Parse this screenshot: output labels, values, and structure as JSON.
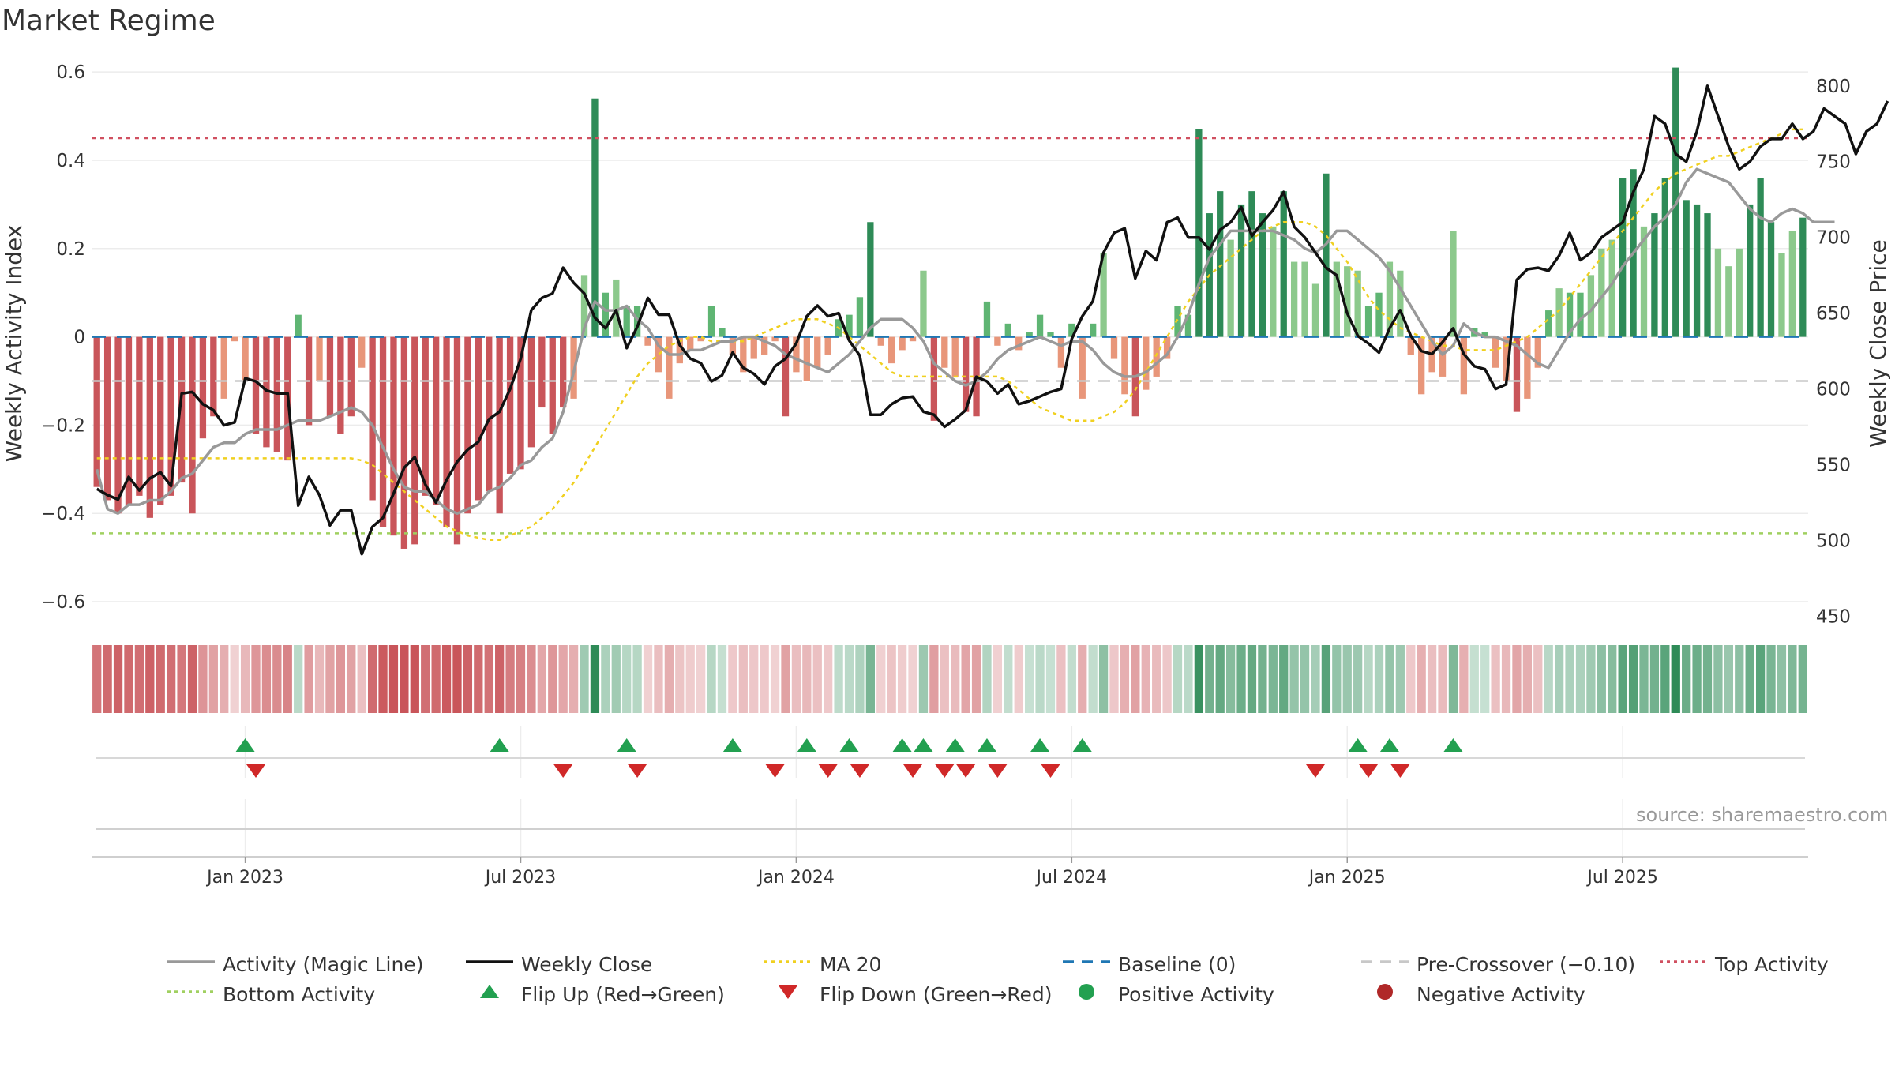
{
  "title": "Market Regime",
  "source": "source: sharemaestro.com",
  "colors": {
    "green_strong": "#2e8b57",
    "green_mid": "#5fb573",
    "green_light": "#8cc98c",
    "red_strong": "#c9555a",
    "red_light": "#e8967a",
    "magic_line": "#999999",
    "close": "#111111",
    "ma20": "#f0d020",
    "baseline": "#1f77b4",
    "pre_crossover": "#c8c8c8",
    "top_activity": "#d05060",
    "bottom_activity": "#a0d060",
    "flip_up": "#22a050",
    "flip_down": "#d02828"
  },
  "legend": [
    {
      "label": "Activity (Magic Line)",
      "symbol": "line",
      "color": "#999999",
      "dash": "solid"
    },
    {
      "label": "Weekly Close",
      "symbol": "line",
      "color": "#111111",
      "dash": "solid"
    },
    {
      "label": "MA 20",
      "symbol": "line",
      "color": "#f0d020",
      "dash": "dot"
    },
    {
      "label": "Baseline (0)",
      "symbol": "line",
      "color": "#1f77b4",
      "dash": "dash"
    },
    {
      "label": "Pre-Crossover (−0.10)",
      "symbol": "line",
      "color": "#c8c8c8",
      "dash": "dash"
    },
    {
      "label": "Top Activity",
      "symbol": "line",
      "color": "#d05060",
      "dash": "dot"
    },
    {
      "label": "Bottom Activity",
      "symbol": "line",
      "color": "#a0d060",
      "dash": "dot"
    },
    {
      "label": "Flip Up (Red→Green)",
      "symbol": "triangle-up",
      "color": "#22a050"
    },
    {
      "label": "Flip Down (Green→Red)",
      "symbol": "triangle-down",
      "color": "#d02828"
    },
    {
      "label": "Positive Activity",
      "symbol": "circle",
      "color": "#22a050"
    },
    {
      "label": "Negative Activity",
      "symbol": "circle",
      "color": "#b02828"
    }
  ],
  "chart_data": {
    "type": "bar",
    "ylabel_left": "Weekly Activity Index",
    "ylabel_right": "Weekly Close Price",
    "ylim_left": [
      -0.65,
      0.62
    ],
    "ylim_right": [
      445,
      815
    ],
    "yticks_left": [
      "0.6",
      "0.4",
      "0.2",
      "0",
      "−0.2",
      "−0.4",
      "−0.6"
    ],
    "yticks_left_values": [
      0.6,
      0.4,
      0.2,
      0,
      -0.2,
      -0.4,
      -0.6
    ],
    "yticks_right": [
      "800",
      "750",
      "700",
      "650",
      "600",
      "550",
      "500",
      "450"
    ],
    "yticks_right_values": [
      800,
      750,
      700,
      650,
      600,
      550,
      500,
      450
    ],
    "xticks": [
      "Jan 2023",
      "Jul 2023",
      "Jan 2024",
      "Jul 2024",
      "Jan 2025",
      "Jul 2025"
    ],
    "xticks_week_index": [
      14,
      40,
      66,
      92,
      118,
      144
    ],
    "thresholds": {
      "baseline": 0,
      "pre_crossover": -0.1,
      "top_activity": 0.45,
      "bottom_activity": -0.445
    },
    "activity": [
      -0.34,
      -0.37,
      -0.4,
      -0.38,
      -0.36,
      -0.41,
      -0.38,
      -0.36,
      -0.33,
      -0.4,
      -0.23,
      -0.18,
      -0.14,
      -0.01,
      -0.1,
      -0.22,
      -0.25,
      -0.26,
      -0.28,
      0.05,
      -0.2,
      -0.1,
      -0.18,
      -0.22,
      -0.18,
      -0.07,
      -0.37,
      -0.43,
      -0.45,
      -0.48,
      -0.47,
      -0.36,
      -0.38,
      -0.43,
      -0.47,
      -0.4,
      -0.37,
      -0.35,
      -0.4,
      -0.31,
      -0.3,
      -0.25,
      -0.16,
      -0.22,
      -0.16,
      -0.14,
      0.14,
      0.54,
      0.1,
      0.13,
      0.07,
      0.07,
      -0.02,
      -0.08,
      -0.14,
      -0.06,
      -0.03,
      -0.01,
      0.07,
      0.02,
      -0.04,
      -0.08,
      -0.05,
      -0.04,
      -0.01,
      -0.18,
      -0.08,
      -0.1,
      -0.07,
      -0.04,
      0.04,
      0.05,
      0.09,
      0.26,
      -0.02,
      -0.06,
      -0.03,
      -0.01,
      0.15,
      -0.19,
      -0.07,
      -0.09,
      -0.17,
      -0.18,
      0.08,
      -0.02,
      0.03,
      -0.03,
      0.01,
      0.05,
      0.01,
      -0.07,
      0.03,
      -0.14,
      0.03,
      0.19,
      -0.05,
      -0.13,
      -0.18,
      -0.12,
      -0.09,
      -0.05,
      0.07,
      0.05,
      0.47,
      0.28,
      0.33,
      0.22,
      0.3,
      0.33,
      0.28,
      0.25,
      0.33,
      0.17,
      0.17,
      0.12,
      0.37,
      0.17,
      0.16,
      0.15,
      0.07,
      0.1,
      0.17,
      0.15,
      -0.04,
      -0.13,
      -0.08,
      -0.09,
      0.24,
      -0.13,
      0.02,
      0.01,
      -0.07,
      -0.1,
      -0.17,
      -0.14,
      -0.07,
      0.06,
      0.11,
      0.1,
      0.1,
      0.14,
      0.2,
      0.22,
      0.36,
      0.38,
      0.25,
      0.28,
      0.36,
      0.61,
      0.31,
      0.3,
      0.28,
      0.2,
      0.16,
      0.2,
      0.3,
      0.36,
      0.26,
      0.19,
      0.24,
      0.27
    ],
    "close": [
      534,
      530,
      527,
      542,
      533,
      541,
      545,
      536,
      597,
      598,
      590,
      586,
      576,
      578,
      607,
      605,
      599,
      597,
      597,
      523,
      542,
      530,
      510,
      520,
      520,
      491,
      509,
      515,
      531,
      548,
      555,
      537,
      525,
      540,
      552,
      560,
      565,
      580,
      585,
      600,
      620,
      652,
      660,
      663,
      680,
      670,
      663,
      647,
      640,
      652,
      627,
      641,
      660,
      649,
      649,
      629,
      620,
      617,
      605,
      609,
      624,
      614,
      610,
      603,
      615,
      620,
      630,
      648,
      655,
      648,
      650,
      632,
      622,
      583,
      583,
      590,
      594,
      595,
      585,
      583,
      575,
      580,
      586,
      608,
      605,
      597,
      603,
      590,
      592,
      595,
      598,
      600,
      633,
      648,
      658,
      690,
      703,
      706,
      673,
      691,
      685,
      710,
      713,
      700,
      700,
      692,
      705,
      710,
      720,
      701,
      710,
      718,
      730,
      707,
      700,
      690,
      680,
      675,
      650,
      635,
      630,
      624,
      640,
      652,
      635,
      625,
      623,
      631,
      640,
      623,
      615,
      613,
      600,
      603,
      672,
      679,
      680,
      678,
      688,
      703,
      685,
      690,
      700,
      705,
      710,
      730,
      745,
      780,
      775,
      755,
      750,
      770,
      800,
      780,
      760,
      745,
      750,
      760,
      765,
      765,
      775,
      765,
      770,
      785,
      780,
      775,
      755,
      770,
      775,
      790
    ],
    "magic": [
      -0.3,
      -0.39,
      -0.4,
      -0.38,
      -0.38,
      -0.37,
      -0.37,
      -0.35,
      -0.32,
      -0.31,
      -0.28,
      -0.25,
      -0.24,
      -0.24,
      -0.22,
      -0.21,
      -0.21,
      -0.21,
      -0.2,
      -0.19,
      -0.19,
      -0.19,
      -0.18,
      -0.17,
      -0.16,
      -0.17,
      -0.2,
      -0.25,
      -0.3,
      -0.34,
      -0.35,
      -0.35,
      -0.37,
      -0.39,
      -0.4,
      -0.39,
      -0.38,
      -0.35,
      -0.34,
      -0.32,
      -0.29,
      -0.28,
      -0.25,
      -0.23,
      -0.17,
      -0.08,
      0.02,
      0.08,
      0.06,
      0.06,
      0.07,
      0.04,
      0.02,
      -0.02,
      -0.04,
      -0.04,
      -0.03,
      -0.03,
      -0.02,
      -0.01,
      -0.01,
      0.0,
      0.0,
      -0.01,
      -0.02,
      -0.04,
      -0.05,
      -0.06,
      -0.07,
      -0.08,
      -0.06,
      -0.04,
      -0.01,
      0.02,
      0.04,
      0.04,
      0.04,
      0.02,
      -0.01,
      -0.06,
      -0.08,
      -0.1,
      -0.11,
      -0.1,
      -0.08,
      -0.05,
      -0.03,
      -0.02,
      -0.01,
      0.0,
      -0.01,
      -0.02,
      -0.01,
      -0.01,
      -0.03,
      -0.06,
      -0.08,
      -0.09,
      -0.09,
      -0.08,
      -0.06,
      -0.04,
      0.0,
      0.05,
      0.12,
      0.18,
      0.21,
      0.24,
      0.24,
      0.24,
      0.24,
      0.24,
      0.23,
      0.22,
      0.2,
      0.19,
      0.21,
      0.24,
      0.24,
      0.22,
      0.2,
      0.18,
      0.15,
      0.11,
      0.07,
      0.03,
      -0.01,
      -0.04,
      -0.02,
      0.03,
      0.01,
      0.0,
      0.0,
      -0.01,
      -0.02,
      -0.04,
      -0.06,
      -0.07,
      -0.03,
      0.01,
      0.04,
      0.06,
      0.09,
      0.12,
      0.16,
      0.19,
      0.22,
      0.25,
      0.27,
      0.3,
      0.35,
      0.38,
      0.37,
      0.36,
      0.35,
      0.32,
      0.29,
      0.27,
      0.26,
      0.28,
      0.29,
      0.28,
      0.26,
      0.26,
      0.26
    ],
    "ma20": [
      -0.275,
      -0.275,
      -0.275,
      -0.275,
      -0.275,
      -0.275,
      -0.275,
      -0.275,
      -0.275,
      -0.275,
      -0.275,
      -0.275,
      -0.275,
      -0.275,
      -0.275,
      -0.275,
      -0.275,
      -0.275,
      -0.275,
      -0.275,
      -0.275,
      -0.275,
      -0.275,
      -0.275,
      -0.275,
      -0.28,
      -0.29,
      -0.31,
      -0.33,
      -0.35,
      -0.37,
      -0.39,
      -0.41,
      -0.43,
      -0.44,
      -0.45,
      -0.455,
      -0.46,
      -0.46,
      -0.45,
      -0.44,
      -0.43,
      -0.41,
      -0.39,
      -0.36,
      -0.33,
      -0.29,
      -0.25,
      -0.21,
      -0.17,
      -0.13,
      -0.09,
      -0.06,
      -0.04,
      -0.02,
      -0.01,
      0.0,
      0.0,
      -0.01,
      -0.01,
      -0.01,
      -0.01,
      0.0,
      0.01,
      0.02,
      0.03,
      0.04,
      0.04,
      0.04,
      0.03,
      0.02,
      0.0,
      -0.02,
      -0.04,
      -0.06,
      -0.08,
      -0.09,
      -0.09,
      -0.09,
      -0.09,
      -0.09,
      -0.09,
      -0.09,
      -0.09,
      -0.09,
      -0.09,
      -0.1,
      -0.12,
      -0.14,
      -0.16,
      -0.17,
      -0.18,
      -0.19,
      -0.19,
      -0.19,
      -0.18,
      -0.17,
      -0.15,
      -0.12,
      -0.08,
      -0.04,
      0.0,
      0.04,
      0.08,
      0.11,
      0.14,
      0.16,
      0.18,
      0.2,
      0.22,
      0.24,
      0.25,
      0.26,
      0.26,
      0.26,
      0.25,
      0.23,
      0.2,
      0.17,
      0.13,
      0.09,
      0.06,
      0.04,
      0.02,
      0.01,
      0.0,
      -0.01,
      -0.02,
      -0.02,
      -0.03,
      -0.03,
      -0.03,
      -0.03,
      -0.02,
      -0.01,
      0.0,
      0.02,
      0.04,
      0.06,
      0.09,
      0.12,
      0.15,
      0.18,
      0.21,
      0.24,
      0.27,
      0.3,
      0.33,
      0.35,
      0.37,
      0.38,
      0.39,
      0.4,
      0.41,
      0.41,
      0.42,
      0.43,
      0.44,
      0.45,
      0.46,
      0.47,
      0.47
    ],
    "flip_up_weeks": [
      14,
      38,
      50,
      60,
      67,
      71,
      76,
      78,
      81,
      84,
      89,
      93,
      119,
      122,
      128
    ],
    "flip_down_weeks": [
      15,
      44,
      51,
      64,
      69,
      72,
      77,
      80,
      82,
      85,
      90,
      115,
      120,
      123
    ]
  }
}
